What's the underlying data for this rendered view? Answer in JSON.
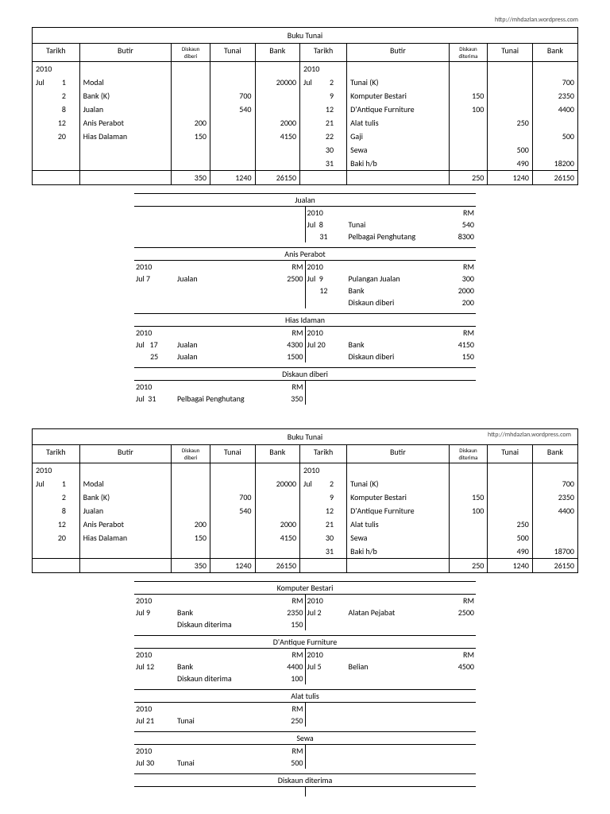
{
  "url": "http://mhdazlan.wordpress.com",
  "headers": {
    "buku": "Buku Tunai",
    "tarikh": "Tarikh",
    "butir": "Butir",
    "diskaun_diberi": "Diskaun diberi",
    "diskaun_diterima": "Diskaun diterima",
    "tunai": "Tunai",
    "bank": "Bank",
    "rm": "RM"
  },
  "cashbook1": {
    "left_year": "2010",
    "left_rows": [
      {
        "m": "Jul",
        "d": "1",
        "butir": "Modal",
        "disk": "",
        "tunai": "",
        "bank": "20000"
      },
      {
        "m": "",
        "d": "2",
        "butir": "Bank (K)",
        "disk": "",
        "tunai": "700",
        "bank": ""
      },
      {
        "m": "",
        "d": "8",
        "butir": "Jualan",
        "disk": "",
        "tunai": "540",
        "bank": ""
      },
      {
        "m": "",
        "d": "12",
        "butir": "Anis Perabot",
        "disk": "200",
        "tunai": "",
        "bank": "2000"
      },
      {
        "m": "",
        "d": "20",
        "butir": "Hias Dalaman",
        "disk": "150",
        "tunai": "",
        "bank": "4150"
      }
    ],
    "left_totals": {
      "disk": "350",
      "tunai": "1240",
      "bank": "26150"
    },
    "right_year": "2010",
    "right_rows": [
      {
        "m": "Jul",
        "d": "2",
        "butir": "Tunai (K)",
        "disk": "",
        "tunai": "",
        "bank": "700"
      },
      {
        "m": "",
        "d": "9",
        "butir": "Komputer Bestari",
        "disk": "150",
        "tunai": "",
        "bank": "2350"
      },
      {
        "m": "",
        "d": "12",
        "butir": "D'Antique Furniture",
        "disk": "100",
        "tunai": "",
        "bank": "4400"
      },
      {
        "m": "",
        "d": "21",
        "butir": "Alat tulis",
        "disk": "",
        "tunai": "250",
        "bank": ""
      },
      {
        "m": "",
        "d": "22",
        "butir": "Gaji",
        "disk": "",
        "tunai": "",
        "bank": "500"
      },
      {
        "m": "",
        "d": "30",
        "butir": "Sewa",
        "disk": "",
        "tunai": "500",
        "bank": ""
      },
      {
        "m": "",
        "d": "31",
        "butir": "Baki h/b",
        "disk": "",
        "tunai": "490",
        "bank": "18200"
      }
    ],
    "right_totals": {
      "disk": "250",
      "tunai": "1240",
      "bank": "26150"
    }
  },
  "ledgers1": [
    {
      "title": "Jualan",
      "left": [],
      "right": [
        {
          "head": true,
          "date": "2010",
          "desc": "",
          "amt": "RM"
        },
        {
          "date": "Jul  8",
          "desc": "Tunai",
          "amt": "540"
        },
        {
          "date": "       31",
          "desc": "Pelbagai Penghutang",
          "amt": "8300"
        }
      ]
    },
    {
      "title": "Anis Perabot",
      "left": [
        {
          "head": true,
          "date": "2010",
          "desc": "",
          "amt": "RM"
        },
        {
          "date": "Jul 7",
          "desc": "Jualan",
          "amt": "2500"
        }
      ],
      "right": [
        {
          "head": true,
          "date": "2010",
          "desc": "",
          "amt": "RM"
        },
        {
          "date": "Jul  9",
          "desc": "Pulangan Jualan",
          "amt": "300"
        },
        {
          "date": "       12",
          "desc": "Bank",
          "amt": "2000"
        },
        {
          "date": "",
          "desc": "Diskaun diberi",
          "amt": "200"
        }
      ]
    },
    {
      "title": "Hias Idaman",
      "left": [
        {
          "head": true,
          "date": "2010",
          "desc": "",
          "amt": "RM"
        },
        {
          "date": "Jul   17",
          "desc": "Jualan",
          "amt": "4300"
        },
        {
          "date": "        25",
          "desc": "Jualan",
          "amt": "1500"
        }
      ],
      "right": [
        {
          "head": true,
          "date": "2010",
          "desc": "",
          "amt": "RM"
        },
        {
          "date": "Jul 20",
          "desc": "Bank",
          "amt": "4150"
        },
        {
          "date": "",
          "desc": "Diskaun diberi",
          "amt": "150"
        }
      ]
    },
    {
      "title": "Diskaun diberi",
      "left": [
        {
          "head": true,
          "date": "2010",
          "desc": "",
          "amt": "RM"
        },
        {
          "date": "Jul  31",
          "desc": "Pelbagai Penghutang",
          "amt": "350"
        }
      ],
      "right": []
    }
  ],
  "cashbook2": {
    "left_year": "2010",
    "left_rows": [
      {
        "m": "Jul",
        "d": "1",
        "butir": "Modal",
        "disk": "",
        "tunai": "",
        "bank": "20000"
      },
      {
        "m": "",
        "d": "2",
        "butir": "Bank (K)",
        "disk": "",
        "tunai": "700",
        "bank": ""
      },
      {
        "m": "",
        "d": "8",
        "butir": "Jualan",
        "disk": "",
        "tunai": "540",
        "bank": ""
      },
      {
        "m": "",
        "d": "12",
        "butir": "Anis Perabot",
        "disk": "200",
        "tunai": "",
        "bank": "2000"
      },
      {
        "m": "",
        "d": "20",
        "butir": "Hias Dalaman",
        "disk": "150",
        "tunai": "",
        "bank": "4150"
      }
    ],
    "left_totals": {
      "disk": "350",
      "tunai": "1240",
      "bank": "26150"
    },
    "right_year": "2010",
    "right_rows": [
      {
        "m": "Jul",
        "d": "2",
        "butir": "Tunai (K)",
        "disk": "",
        "tunai": "",
        "bank": "700"
      },
      {
        "m": "",
        "d": "9",
        "butir": "Komputer Bestari",
        "disk": "150",
        "tunai": "",
        "bank": "2350"
      },
      {
        "m": "",
        "d": "12",
        "butir": "D'Antique Furniture",
        "disk": "100",
        "tunai": "",
        "bank": "4400"
      },
      {
        "m": "",
        "d": "21",
        "butir": "Alat tulis",
        "disk": "",
        "tunai": "250",
        "bank": ""
      },
      {
        "m": "",
        "d": "30",
        "butir": "Sewa",
        "disk": "",
        "tunai": "500",
        "bank": ""
      },
      {
        "m": "",
        "d": "31",
        "butir": "Baki h/b",
        "disk": "",
        "tunai": "490",
        "bank": "18700"
      }
    ],
    "right_totals": {
      "disk": "250",
      "tunai": "1240",
      "bank": "26150"
    }
  },
  "ledgers2": [
    {
      "title": "Komputer Bestari",
      "left": [
        {
          "head": true,
          "date": "2010",
          "desc": "",
          "amt": "RM"
        },
        {
          "date": "Jul 9",
          "desc": "Bank",
          "amt": "2350"
        },
        {
          "date": "",
          "desc": "Diskaun diterima",
          "amt": "150"
        }
      ],
      "right": [
        {
          "head": true,
          "date": "2010",
          "desc": "",
          "amt": "RM"
        },
        {
          "date": "Jul 2",
          "desc": "Alatan Pejabat",
          "amt": "2500"
        }
      ]
    },
    {
      "title": "D'Antique Furniture",
      "left": [
        {
          "head": true,
          "date": "2010",
          "desc": "",
          "amt": "RM"
        },
        {
          "date": "Jul 12",
          "desc": "Bank",
          "amt": "4400"
        },
        {
          "date": "",
          "desc": "Diskaun diterima",
          "amt": "100"
        }
      ],
      "right": [
        {
          "head": true,
          "date": "2010",
          "desc": "",
          "amt": "RM"
        },
        {
          "date": "Jul 5",
          "desc": "Belian",
          "amt": "4500"
        }
      ]
    },
    {
      "title": "Alat tulis",
      "left": [
        {
          "head": true,
          "date": "2010",
          "desc": "",
          "amt": "RM"
        },
        {
          "date": "Jul 21",
          "desc": "Tunai",
          "amt": "250"
        }
      ],
      "right": []
    },
    {
      "title": "Sewa",
      "left": [
        {
          "head": true,
          "date": "2010",
          "desc": "",
          "amt": "RM"
        },
        {
          "date": "Jul 30",
          "desc": "Tunai",
          "amt": "500"
        }
      ],
      "right": []
    },
    {
      "title": "Diskaun diterima",
      "left": [],
      "right": []
    }
  ]
}
